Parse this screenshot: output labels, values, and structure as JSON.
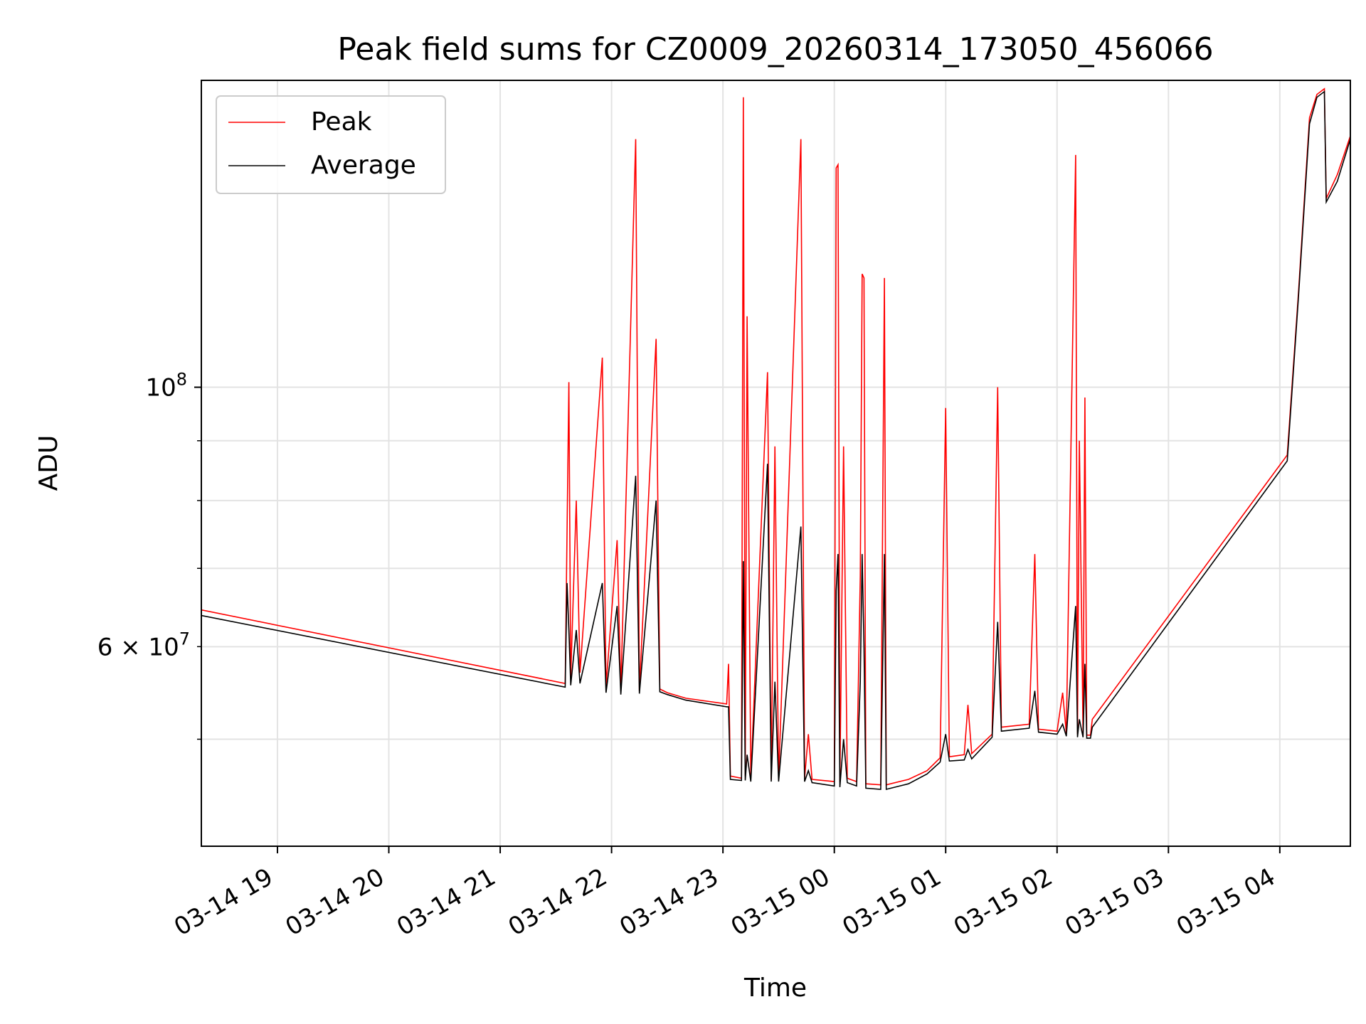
{
  "chart_data": {
    "type": "line",
    "title": "Peak field sums for CZ0009_20260314_173050_456066",
    "xlabel": "Time",
    "ylabel": "ADU",
    "yscale": "log",
    "xlim": [
      "2026-03-14 18:19",
      "2026-03-15 04:38"
    ],
    "ylim": [
      40500000,
      183000000
    ],
    "grid": true,
    "legend_position": "top-left",
    "x_ticks": [
      {
        "t": "2026-03-14 19:00",
        "label": "03-14 19"
      },
      {
        "t": "2026-03-14 20:00",
        "label": "03-14 20"
      },
      {
        "t": "2026-03-14 21:00",
        "label": "03-14 21"
      },
      {
        "t": "2026-03-14 22:00",
        "label": "03-14 22"
      },
      {
        "t": "2026-03-14 23:00",
        "label": "03-14 23"
      },
      {
        "t": "2026-03-15 00:00",
        "label": "03-15 00"
      },
      {
        "t": "2026-03-15 01:00",
        "label": "03-15 01"
      },
      {
        "t": "2026-03-15 02:00",
        "label": "03-15 02"
      },
      {
        "t": "2026-03-15 03:00",
        "label": "03-15 03"
      },
      {
        "t": "2026-03-15 04:00",
        "label": "03-15 04"
      }
    ],
    "y_major_ticks": [
      {
        "v": 100000000,
        "base": "10",
        "exp": "8"
      }
    ],
    "y_minor_ticks": [
      {
        "v": 50000000,
        "label": ""
      },
      {
        "v": 60000000,
        "label": "6 × 10",
        "exp": "7"
      },
      {
        "v": 70000000,
        "label": ""
      },
      {
        "v": 80000000,
        "label": ""
      },
      {
        "v": 90000000,
        "label": ""
      }
    ],
    "series": [
      {
        "name": "Peak",
        "color": "#ff0000",
        "values": [
          [
            "2026-03-14 18:19",
            64500000
          ],
          [
            "2026-03-14 21:35",
            55800000
          ],
          [
            "2026-03-14 21:36",
            75000000
          ],
          [
            "2026-03-14 21:37",
            101000000
          ],
          [
            "2026-03-14 21:38",
            56500000
          ],
          [
            "2026-03-14 21:41",
            80000000
          ],
          [
            "2026-03-14 21:43",
            57000000
          ],
          [
            "2026-03-14 21:55",
            106000000
          ],
          [
            "2026-03-14 21:57",
            55500000
          ],
          [
            "2026-03-14 22:03",
            74000000
          ],
          [
            "2026-03-14 22:05",
            55000000
          ],
          [
            "2026-03-14 22:13",
            163000000
          ],
          [
            "2026-03-14 22:15",
            55000000
          ],
          [
            "2026-03-14 22:24",
            110000000
          ],
          [
            "2026-03-14 22:26",
            55200000
          ],
          [
            "2026-03-14 22:30",
            54800000
          ],
          [
            "2026-03-14 22:40",
            54200000
          ],
          [
            "2026-03-14 23:02",
            53600000
          ],
          [
            "2026-03-14 23:03",
            58000000
          ],
          [
            "2026-03-14 23:04",
            46500000
          ],
          [
            "2026-03-14 23:10",
            46300000
          ],
          [
            "2026-03-14 23:11",
            177000000
          ],
          [
            "2026-03-14 23:12",
            46500000
          ],
          [
            "2026-03-14 23:13",
            115000000
          ],
          [
            "2026-03-14 23:15",
            46300000
          ],
          [
            "2026-03-14 23:24",
            103000000
          ],
          [
            "2026-03-14 23:26",
            46200000
          ],
          [
            "2026-03-14 23:28",
            89000000
          ],
          [
            "2026-03-14 23:30",
            46200000
          ],
          [
            "2026-03-14 23:42",
            163000000
          ],
          [
            "2026-03-14 23:44",
            46300000
          ],
          [
            "2026-03-14 23:46",
            50500000
          ],
          [
            "2026-03-14 23:48",
            46200000
          ],
          [
            "2026-03-15 00:00",
            46000000
          ],
          [
            "2026-03-15 00:01",
            154000000
          ],
          [
            "2026-03-15 00:02",
            155000000
          ],
          [
            "2026-03-15 00:03",
            46000000
          ],
          [
            "2026-03-15 00:05",
            89000000
          ],
          [
            "2026-03-15 00:07",
            46300000
          ],
          [
            "2026-03-15 00:12",
            46000000
          ],
          [
            "2026-03-15 00:14",
            69000000
          ],
          [
            "2026-03-15 00:15",
            125000000
          ],
          [
            "2026-03-15 00:16",
            124000000
          ],
          [
            "2026-03-15 00:17",
            45800000
          ],
          [
            "2026-03-15 00:25",
            45700000
          ],
          [
            "2026-03-15 00:27",
            124000000
          ],
          [
            "2026-03-15 00:28",
            45700000
          ],
          [
            "2026-03-15 00:40",
            46200000
          ],
          [
            "2026-03-15 00:50",
            47000000
          ],
          [
            "2026-03-15 00:57",
            48200000
          ],
          [
            "2026-03-15 01:00",
            96000000
          ],
          [
            "2026-03-15 01:02",
            48300000
          ],
          [
            "2026-03-15 01:10",
            48500000
          ],
          [
            "2026-03-15 01:12",
            53500000
          ],
          [
            "2026-03-15 01:14",
            48600000
          ],
          [
            "2026-03-15 01:25",
            50500000
          ],
          [
            "2026-03-15 01:28",
            100000000
          ],
          [
            "2026-03-15 01:30",
            51200000
          ],
          [
            "2026-03-15 01:45",
            51500000
          ],
          [
            "2026-03-15 01:48",
            72000000
          ],
          [
            "2026-03-15 01:50",
            51000000
          ],
          [
            "2026-03-15 02:00",
            50800000
          ],
          [
            "2026-03-15 02:03",
            54800000
          ],
          [
            "2026-03-15 02:05",
            50600000
          ],
          [
            "2026-03-15 02:10",
            158000000
          ],
          [
            "2026-03-15 02:11",
            50500000
          ],
          [
            "2026-03-15 02:12",
            90000000
          ],
          [
            "2026-03-15 02:14",
            50500000
          ],
          [
            "2026-03-15 02:15",
            98000000
          ],
          [
            "2026-03-15 02:16",
            50400000
          ],
          [
            "2026-03-15 02:18",
            50400000
          ],
          [
            "2026-03-15 02:19",
            52000000
          ],
          [
            "2026-03-15 04:04",
            87500000
          ],
          [
            "2026-03-15 04:10",
            120000000
          ],
          [
            "2026-03-15 04:16",
            170000000
          ],
          [
            "2026-03-15 04:20",
            178000000
          ],
          [
            "2026-03-15 04:24",
            180000000
          ],
          [
            "2026-03-15 04:25",
            145000000
          ],
          [
            "2026-03-15 04:31",
            152000000
          ],
          [
            "2026-03-15 04:38",
            164000000
          ]
        ]
      },
      {
        "name": "Average",
        "color": "#000000",
        "values": [
          [
            "2026-03-14 18:19",
            63800000
          ],
          [
            "2026-03-14 21:35",
            55400000
          ],
          [
            "2026-03-14 21:36",
            68000000
          ],
          [
            "2026-03-14 21:37",
            62000000
          ],
          [
            "2026-03-14 21:38",
            55600000
          ],
          [
            "2026-03-14 21:41",
            62000000
          ],
          [
            "2026-03-14 21:43",
            55800000
          ],
          [
            "2026-03-14 21:55",
            68000000
          ],
          [
            "2026-03-14 21:57",
            54800000
          ],
          [
            "2026-03-14 22:03",
            65000000
          ],
          [
            "2026-03-14 22:05",
            54600000
          ],
          [
            "2026-03-14 22:13",
            84000000
          ],
          [
            "2026-03-14 22:15",
            54700000
          ],
          [
            "2026-03-14 22:24",
            80000000
          ],
          [
            "2026-03-14 22:26",
            54900000
          ],
          [
            "2026-03-14 22:30",
            54600000
          ],
          [
            "2026-03-14 22:40",
            54000000
          ],
          [
            "2026-03-14 23:02",
            53300000
          ],
          [
            "2026-03-14 23:03",
            53300000
          ],
          [
            "2026-03-14 23:04",
            46200000
          ],
          [
            "2026-03-14 23:10",
            46100000
          ],
          [
            "2026-03-14 23:11",
            71000000
          ],
          [
            "2026-03-14 23:12",
            46100000
          ],
          [
            "2026-03-14 23:13",
            48500000
          ],
          [
            "2026-03-14 23:15",
            46000000
          ],
          [
            "2026-03-14 23:24",
            86000000
          ],
          [
            "2026-03-14 23:26",
            46000000
          ],
          [
            "2026-03-14 23:28",
            56000000
          ],
          [
            "2026-03-14 23:30",
            46000000
          ],
          [
            "2026-03-14 23:42",
            76000000
          ],
          [
            "2026-03-14 23:44",
            46000000
          ],
          [
            "2026-03-14 23:46",
            47000000
          ],
          [
            "2026-03-14 23:48",
            45900000
          ],
          [
            "2026-03-15 00:00",
            45600000
          ],
          [
            "2026-03-15 00:01",
            67000000
          ],
          [
            "2026-03-15 00:02",
            72000000
          ],
          [
            "2026-03-15 00:03",
            45500000
          ],
          [
            "2026-03-15 00:05",
            50000000
          ],
          [
            "2026-03-15 00:07",
            45900000
          ],
          [
            "2026-03-15 00:12",
            45600000
          ],
          [
            "2026-03-15 00:14",
            56000000
          ],
          [
            "2026-03-15 00:15",
            72000000
          ],
          [
            "2026-03-15 00:16",
            60000000
          ],
          [
            "2026-03-15 00:17",
            45400000
          ],
          [
            "2026-03-15 00:25",
            45300000
          ],
          [
            "2026-03-15 00:27",
            72000000
          ],
          [
            "2026-03-15 00:28",
            45300000
          ],
          [
            "2026-03-15 00:40",
            45800000
          ],
          [
            "2026-03-15 00:50",
            46700000
          ],
          [
            "2026-03-15 00:57",
            47800000
          ],
          [
            "2026-03-15 01:00",
            50500000
          ],
          [
            "2026-03-15 01:02",
            47900000
          ],
          [
            "2026-03-15 01:10",
            48000000
          ],
          [
            "2026-03-15 01:12",
            49000000
          ],
          [
            "2026-03-15 01:14",
            48100000
          ],
          [
            "2026-03-15 01:25",
            50200000
          ],
          [
            "2026-03-15 01:28",
            63000000
          ],
          [
            "2026-03-15 01:30",
            50800000
          ],
          [
            "2026-03-15 01:45",
            51100000
          ],
          [
            "2026-03-15 01:48",
            55000000
          ],
          [
            "2026-03-15 01:50",
            50700000
          ],
          [
            "2026-03-15 02:00",
            50500000
          ],
          [
            "2026-03-15 02:03",
            51500000
          ],
          [
            "2026-03-15 02:05",
            50300000
          ],
          [
            "2026-03-15 02:10",
            65000000
          ],
          [
            "2026-03-15 02:11",
            50200000
          ],
          [
            "2026-03-15 02:12",
            52000000
          ],
          [
            "2026-03-15 02:14",
            50200000
          ],
          [
            "2026-03-15 02:15",
            58000000
          ],
          [
            "2026-03-15 02:16",
            50100000
          ],
          [
            "2026-03-15 02:18",
            50100000
          ],
          [
            "2026-03-15 02:19",
            51200000
          ],
          [
            "2026-03-15 04:04",
            86500000
          ],
          [
            "2026-03-15 04:10",
            119000000
          ],
          [
            "2026-03-15 04:16",
            168000000
          ],
          [
            "2026-03-15 04:20",
            177000000
          ],
          [
            "2026-03-15 04:24",
            179000000
          ],
          [
            "2026-03-15 04:25",
            144000000
          ],
          [
            "2026-03-15 04:31",
            150000000
          ],
          [
            "2026-03-15 04:38",
            163000000
          ]
        ]
      }
    ]
  }
}
